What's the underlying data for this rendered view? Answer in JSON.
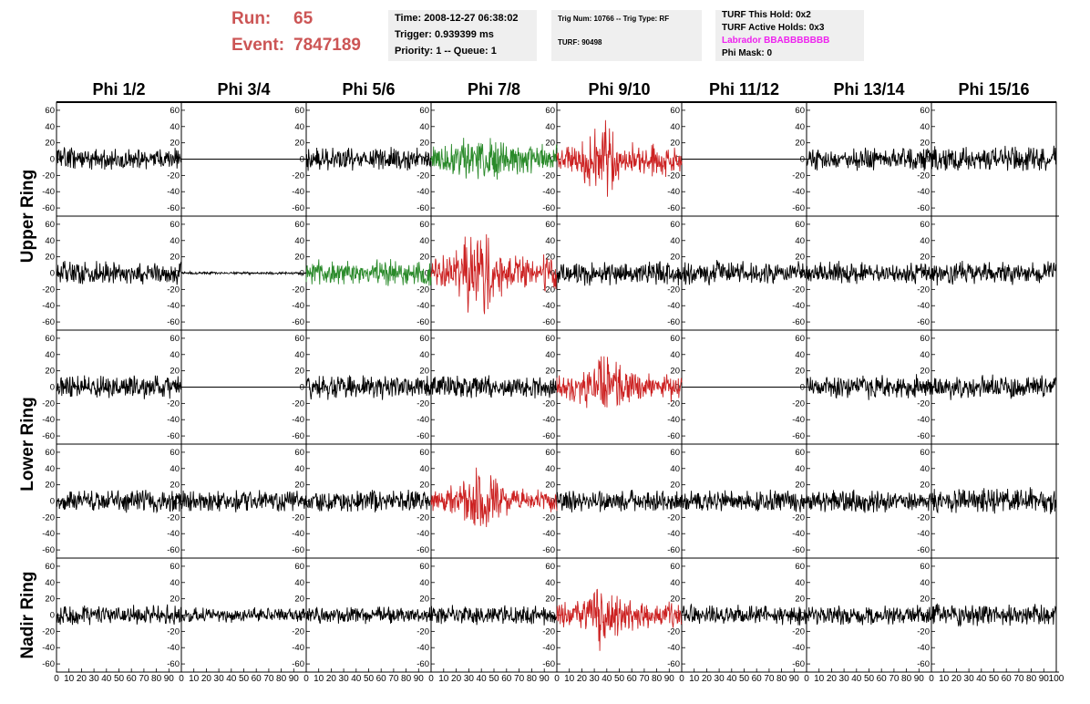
{
  "header": {
    "run_label": "Run:",
    "run_value": "65",
    "event_label": "Event:",
    "event_value": "7847189",
    "time": "Time: 2008-12-27 06:38:02",
    "trigger": "Trigger: 0.939399 ms",
    "priority": "Priority: 1 -- Queue: 1",
    "trig_num": "Trig Num: 10766 -- Trig Type: RF",
    "turf": "TURF: 90498",
    "turf_hold": "TURF This Hold: 0x2",
    "turf_active": "TURF Active Holds: 0x3",
    "labrador": "Labrador BBABBBBBBB",
    "phi_mask": "Phi Mask: 0"
  },
  "colors": {
    "title_red": "#cc5555",
    "labrador": "#ee22ee",
    "black": "#000000",
    "green": "#2a8a2a",
    "red": "#cc2222"
  },
  "chart_data": {
    "type": "line",
    "columns": [
      "Phi 1/2",
      "Phi 3/4",
      "Phi 5/6",
      "Phi 7/8",
      "Phi 9/10",
      "Phi 11/12",
      "Phi 13/14",
      "Phi 15/16"
    ],
    "rows": [
      "Upper Ring",
      "Lower Ring",
      "Nadir Ring"
    ],
    "ylim": [
      -70,
      70
    ],
    "yticks": [
      -60,
      -40,
      -20,
      0,
      20,
      40,
      60
    ],
    "xlim": [
      0,
      100
    ],
    "xticks": [
      0,
      10,
      20,
      30,
      40,
      50,
      60,
      70,
      80,
      90,
      100
    ],
    "x_tick_labels": [
      "0",
      "10",
      "20",
      "30",
      "40",
      "50",
      "60",
      "70",
      "80",
      "90",
      "100"
    ],
    "panels": [
      {
        "column": "Phi 1/2",
        "channel": 1,
        "color": "black",
        "amp": 12,
        "seed": 11
      },
      {
        "column": "Phi 3/4",
        "channel": 1,
        "color": "black",
        "amp": 0,
        "seed": 12
      },
      {
        "column": "Phi 5/6",
        "channel": 1,
        "color": "black",
        "amp": 13,
        "seed": 13
      },
      {
        "column": "Phi 7/8",
        "channel": 1,
        "color": "green",
        "amp": 16,
        "seed": 14,
        "burst": 1.8
      },
      {
        "column": "Phi 9/10",
        "channel": 1,
        "color": "red",
        "amp": 18,
        "seed": 15,
        "burst": 2.4
      },
      {
        "column": "Phi 11/12",
        "channel": 1,
        "color": "black",
        "amp": 0,
        "seed": 16
      },
      {
        "column": "Phi 13/14",
        "channel": 1,
        "color": "black",
        "amp": 13,
        "seed": 17
      },
      {
        "column": "Phi 15/16",
        "channel": 1,
        "color": "black",
        "amp": 14,
        "seed": 18
      },
      {
        "column": "Phi 1/2",
        "channel": 2,
        "color": "black",
        "amp": 14,
        "seed": 21
      },
      {
        "column": "Phi 3/4",
        "channel": 2,
        "color": "black",
        "amp": 1.5,
        "seed": 22
      },
      {
        "column": "Phi 5/6",
        "channel": 2,
        "color": "green",
        "amp": 14,
        "seed": 23
      },
      {
        "column": "Phi 7/8",
        "channel": 2,
        "color": "red",
        "amp": 20,
        "seed": 24,
        "burst": 2.6
      },
      {
        "column": "Phi 9/10",
        "channel": 2,
        "color": "black",
        "amp": 13,
        "seed": 25
      },
      {
        "column": "Phi 11/12",
        "channel": 2,
        "color": "black",
        "amp": 13,
        "seed": 26
      },
      {
        "column": "Phi 13/14",
        "channel": 2,
        "color": "black",
        "amp": 12,
        "seed": 27
      },
      {
        "column": "Phi 15/16",
        "channel": 2,
        "color": "black",
        "amp": 13,
        "seed": 28
      },
      {
        "column": "Phi 1/2",
        "channel": 3,
        "color": "black",
        "amp": 13,
        "seed": 31
      },
      {
        "column": "Phi 3/4",
        "channel": 3,
        "color": "black",
        "amp": 0,
        "seed": 32
      },
      {
        "column": "Phi 5/6",
        "channel": 3,
        "color": "black",
        "amp": 13,
        "seed": 33
      },
      {
        "column": "Phi 7/8",
        "channel": 3,
        "color": "black",
        "amp": 12,
        "seed": 34
      },
      {
        "column": "Phi 9/10",
        "channel": 3,
        "color": "red",
        "amp": 16,
        "seed": 35,
        "burst": 2.6
      },
      {
        "column": "Phi 11/12",
        "channel": 3,
        "color": "black",
        "amp": 0,
        "seed": 36
      },
      {
        "column": "Phi 13/14",
        "channel": 3,
        "color": "black",
        "amp": 13,
        "seed": 37
      },
      {
        "column": "Phi 15/16",
        "channel": 3,
        "color": "black",
        "amp": 13,
        "seed": 38
      },
      {
        "column": "Phi 1/2",
        "channel": 4,
        "color": "black",
        "amp": 12,
        "seed": 41
      },
      {
        "column": "Phi 3/4",
        "channel": 4,
        "color": "black",
        "amp": 12,
        "seed": 42
      },
      {
        "column": "Phi 5/6",
        "channel": 4,
        "color": "black",
        "amp": 12,
        "seed": 43
      },
      {
        "column": "Phi 7/8",
        "channel": 4,
        "color": "red",
        "amp": 14,
        "seed": 44,
        "burst": 2.6
      },
      {
        "column": "Phi 9/10",
        "channel": 4,
        "color": "black",
        "amp": 12,
        "seed": 45
      },
      {
        "column": "Phi 11/12",
        "channel": 4,
        "color": "black",
        "amp": 12,
        "seed": 46
      },
      {
        "column": "Phi 13/14",
        "channel": 4,
        "color": "black",
        "amp": 12,
        "seed": 47
      },
      {
        "column": "Phi 15/16",
        "channel": 4,
        "color": "black",
        "amp": 14,
        "seed": 48
      },
      {
        "column": "Phi 1/2",
        "channel": 5,
        "color": "black",
        "amp": 11,
        "seed": 51
      },
      {
        "column": "Phi 3/4",
        "channel": 5,
        "color": "black",
        "amp": 8,
        "seed": 52
      },
      {
        "column": "Phi 5/6",
        "channel": 5,
        "color": "black",
        "amp": 9,
        "seed": 53
      },
      {
        "column": "Phi 7/8",
        "channel": 5,
        "color": "black",
        "amp": 11,
        "seed": 54
      },
      {
        "column": "Phi 9/10",
        "channel": 5,
        "color": "red",
        "amp": 15,
        "seed": 55,
        "burst": 2.5
      },
      {
        "column": "Phi 11/12",
        "channel": 5,
        "color": "black",
        "amp": 11,
        "seed": 56
      },
      {
        "column": "Phi 13/14",
        "channel": 5,
        "color": "black",
        "amp": 11,
        "seed": 57
      },
      {
        "column": "Phi 15/16",
        "channel": 5,
        "color": "black",
        "amp": 12,
        "seed": 58
      }
    ]
  }
}
